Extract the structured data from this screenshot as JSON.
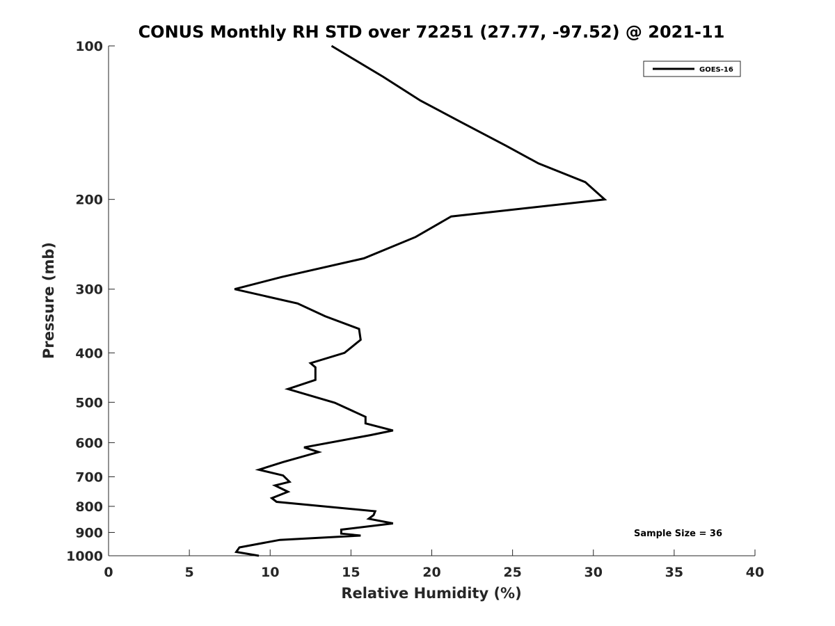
{
  "chart_data": {
    "type": "line",
    "title": "CONUS Monthly RH STD over 72251 (27.77, -97.52) @ 2021-11",
    "xlabel": "Relative Humidity (%)",
    "ylabel": "Pressure (mb)",
    "xlim": [
      0,
      40
    ],
    "ylim": [
      100,
      1000
    ],
    "y_scale": "log",
    "y_reversed": true,
    "x_ticks": [
      0,
      5,
      10,
      15,
      20,
      25,
      30,
      35,
      40
    ],
    "y_ticks": [
      100,
      200,
      300,
      400,
      500,
      600,
      700,
      800,
      900,
      1000
    ],
    "grid": false,
    "legend_position": "top-right",
    "series": [
      {
        "name": "GOES-16",
        "color": "#000000",
        "points": [
          [
            13.8,
            100
          ],
          [
            17.0,
            115
          ],
          [
            19.3,
            128
          ],
          [
            21.8,
            141
          ],
          [
            24.6,
            157
          ],
          [
            26.6,
            170
          ],
          [
            29.5,
            185
          ],
          [
            30.7,
            200
          ],
          [
            21.2,
            216
          ],
          [
            19.0,
            237
          ],
          [
            15.8,
            261
          ],
          [
            10.7,
            284
          ],
          [
            7.8,
            300
          ],
          [
            11.7,
            320
          ],
          [
            13.4,
            339
          ],
          [
            15.5,
            359
          ],
          [
            15.6,
            377
          ],
          [
            14.6,
            400
          ],
          [
            12.5,
            419
          ],
          [
            12.8,
            427
          ],
          [
            12.8,
            452
          ],
          [
            11.1,
            471
          ],
          [
            14.0,
            501
          ],
          [
            15.9,
            534
          ],
          [
            15.9,
            550
          ],
          [
            17.6,
            568
          ],
          [
            16.2,
            580
          ],
          [
            12.1,
            613
          ],
          [
            13.0,
            626
          ],
          [
            10.8,
            655
          ],
          [
            9.3,
            678
          ],
          [
            10.8,
            696
          ],
          [
            11.2,
            716
          ],
          [
            10.3,
            728
          ],
          [
            11.1,
            749
          ],
          [
            10.1,
            771
          ],
          [
            10.4,
            784
          ],
          [
            16.5,
            818
          ],
          [
            16.4,
            832
          ],
          [
            16.1,
            846
          ],
          [
            17.6,
            864
          ],
          [
            14.4,
            889
          ],
          [
            14.4,
            905
          ],
          [
            15.6,
            913
          ],
          [
            10.6,
            931
          ],
          [
            8.1,
            963
          ],
          [
            7.9,
            983
          ],
          [
            9.3,
            1000
          ]
        ]
      }
    ],
    "annotations": [
      "Sample Size = 36"
    ]
  }
}
